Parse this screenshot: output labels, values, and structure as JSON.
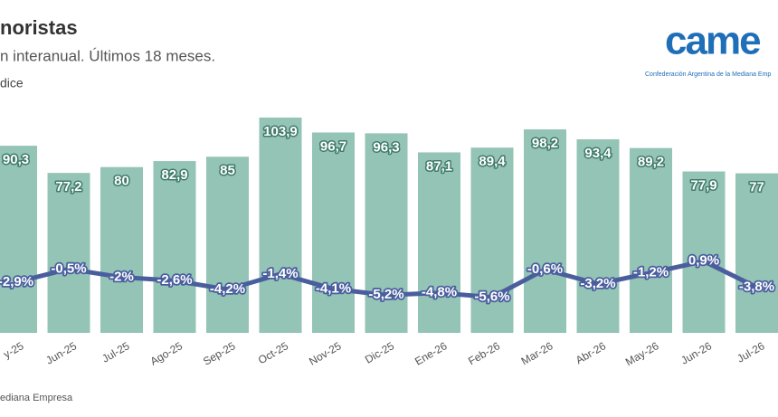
{
  "chart_data": {
    "type": "bar_line",
    "title": "noristas",
    "subtitle": "n interanual. Últimos 18 meses.",
    "y_label": "dice",
    "source": "ediana Empresa",
    "logo": "came",
    "logo_caption": "Confederación Argentina de la Mediana Emp",
    "categories": [
      "y-25",
      "Jun-25",
      "Jul-25",
      "Ago-25",
      "Sep-25",
      "Oct-25",
      "Nov-25",
      "Dic-25",
      "Ene-26",
      "Feb-26",
      "Mar-26",
      "Abr-26",
      "May-26",
      "Jun-26",
      "Jul-26"
    ],
    "ylim": [
      0,
      110
    ],
    "y2lim": [
      -12,
      29
    ],
    "series": [
      {
        "name": "Índice",
        "type": "bar",
        "color": "#93c4b5",
        "values": [
          90.3,
          77.2,
          80,
          82.9,
          85,
          103.9,
          96.7,
          96.3,
          87.1,
          89.4,
          98.2,
          93.4,
          89.2,
          77.9,
          77
        ],
        "value_labels": [
          "90,3",
          "77,2",
          "80",
          "82,9",
          "85",
          "103,9",
          "96,7",
          "96,3",
          "87,1",
          "89,4",
          "98,2",
          "93,4",
          "89,2",
          "77,9",
          "77"
        ]
      },
      {
        "name": "Variación interanual",
        "type": "line",
        "axis": "y2",
        "color": "#4a5e9e",
        "values": [
          -2.9,
          -0.5,
          -2,
          -2.6,
          -4.2,
          -1.4,
          -4.1,
          -5.2,
          -4.8,
          -5.6,
          -0.6,
          -3.2,
          -1.2,
          0.9,
          -3.8
        ],
        "value_labels": [
          "-2,9%",
          "-0,5%",
          "-2%",
          "-2,6%",
          "-4,2%",
          "-1,4%",
          "-4,1%",
          "-5,2%",
          "-4,8%",
          "-5,6%",
          "-0,6%",
          "-3,2%",
          "-1,2%",
          "0,9%",
          "-3,8%"
        ]
      }
    ]
  }
}
